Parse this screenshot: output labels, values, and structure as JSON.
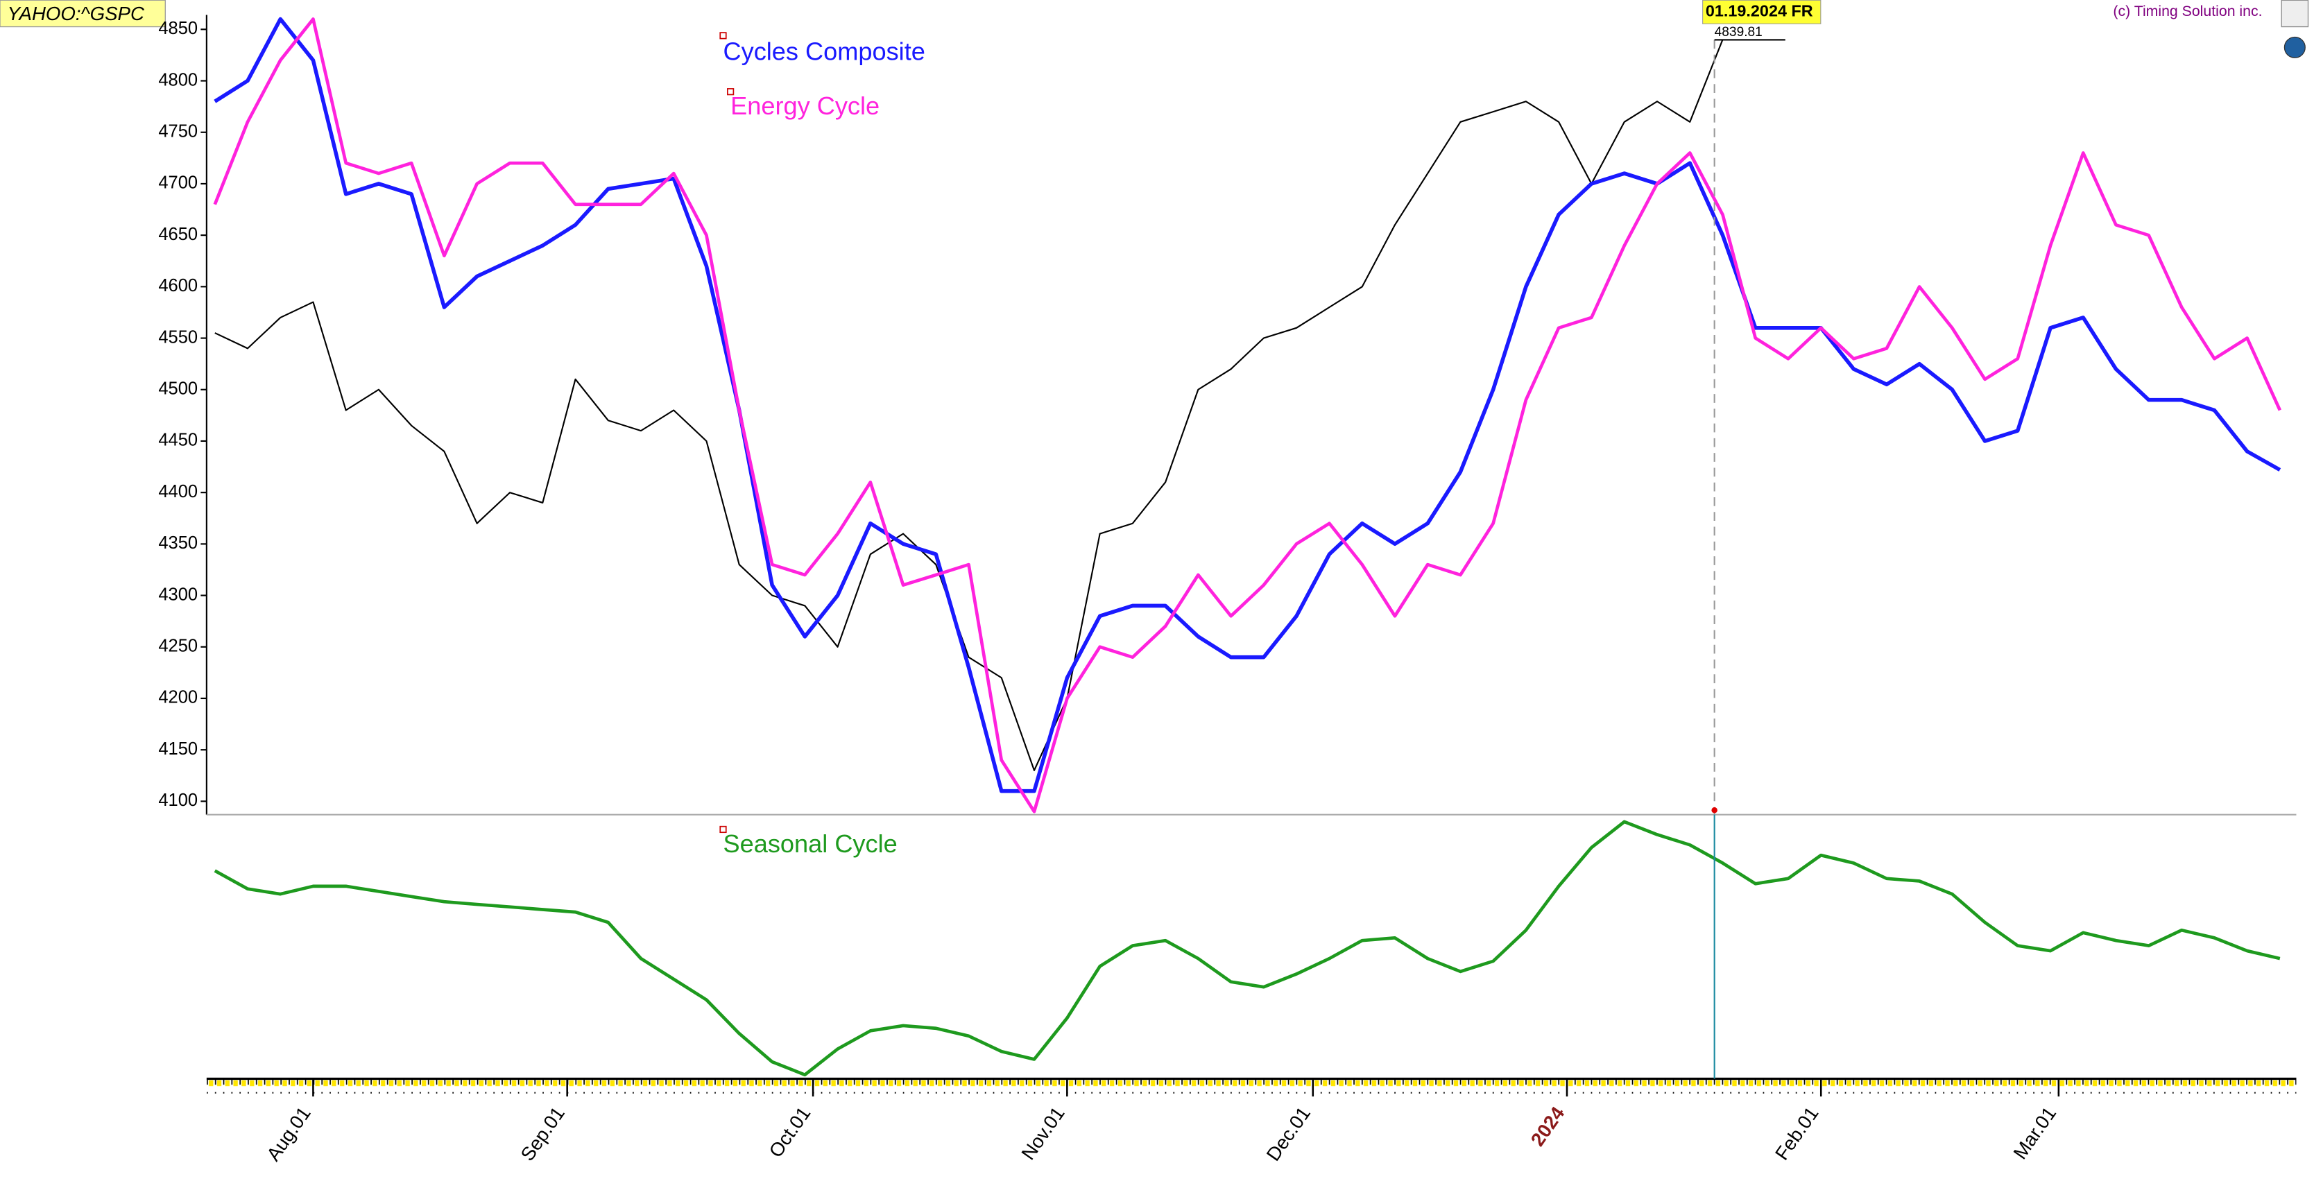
{
  "header": {
    "symbol": "YAHOO:^GSPC",
    "copyright": "(c) Timing Solution inc."
  },
  "cursor": {
    "label": "01.19.2024 FR",
    "price": 4839.81,
    "x": 171
  },
  "chart_data": [
    {
      "type": "line",
      "xlim": [
        -13,
        242
      ],
      "xticks": [
        {
          "value": 0,
          "label": "Aug.01"
        },
        {
          "value": 31,
          "label": "Sep.01"
        },
        {
          "value": 61,
          "label": "Oct.01"
        },
        {
          "value": 92,
          "label": "Nov.01"
        },
        {
          "value": 122,
          "label": "Dec.01"
        },
        {
          "value": 153,
          "label": "2024"
        },
        {
          "value": 184,
          "label": "Feb.01"
        },
        {
          "value": 213,
          "label": "Mar.01"
        }
      ],
      "ylim": [
        4087,
        4864
      ],
      "yticks": [
        4100,
        4150,
        4200,
        4250,
        4300,
        4350,
        4400,
        4450,
        4500,
        4550,
        4600,
        4650,
        4700,
        4750,
        4800,
        4850
      ],
      "x": [
        -12,
        -8,
        -4,
        0,
        4,
        8,
        12,
        16,
        20,
        24,
        28,
        32,
        36,
        40,
        44,
        48,
        52,
        56,
        60,
        64,
        68,
        72,
        76,
        80,
        84,
        88,
        92,
        96,
        100,
        104,
        108,
        112,
        116,
        120,
        124,
        128,
        132,
        136,
        140,
        144,
        148,
        152,
        156,
        160,
        164,
        168,
        172,
        176,
        180,
        184,
        188,
        192,
        196,
        200,
        204,
        208,
        212,
        216,
        220,
        224,
        228,
        232,
        236,
        240
      ],
      "series": [
        {
          "name": "YAHOO:^GSPC",
          "color": "#000000",
          "values": [
            4555,
            4540,
            4570,
            4585,
            4480,
            4500,
            4465,
            4440,
            4370,
            4400,
            4390,
            4510,
            4470,
            4460,
            4480,
            4450,
            4330,
            4300,
            4290,
            4250,
            4340,
            4360,
            4330,
            4240,
            4220,
            4130,
            4200,
            4360,
            4370,
            4410,
            4500,
            4520,
            4550,
            4560,
            4580,
            4600,
            4660,
            4710,
            4760,
            4770,
            4780,
            4760,
            4700,
            4760,
            4780,
            4760,
            4840,
            null,
            null,
            null,
            null,
            null,
            null,
            null,
            null,
            null,
            null,
            null,
            null,
            null,
            null,
            null,
            null,
            null
          ]
        },
        {
          "name": "Cycles Composite",
          "color": "#1a1aff",
          "values": [
            4780,
            4800,
            4860,
            4820,
            4690,
            4700,
            4690,
            4580,
            4610,
            4625,
            4640,
            4660,
            4695,
            4700,
            4705,
            4620,
            4480,
            4310,
            4260,
            4300,
            4370,
            4350,
            4340,
            4230,
            4110,
            4110,
            4220,
            4280,
            4290,
            4290,
            4260,
            4240,
            4240,
            4280,
            4340,
            4370,
            4350,
            4370,
            4420,
            4500,
            4600,
            4670,
            4700,
            4710,
            4700,
            4720,
            4650,
            4560,
            4560,
            4560,
            4520,
            4505,
            4525,
            4500,
            4450,
            4460,
            4560,
            4570,
            4520,
            4490,
            4490,
            4480,
            4440,
            4422
          ]
        },
        {
          "name": "Energy Cycle",
          "color": "#ff22dd",
          "values": [
            4680,
            4760,
            4820,
            4860,
            4720,
            4710,
            4720,
            4630,
            4700,
            4720,
            4720,
            4680,
            4680,
            4680,
            4710,
            4650,
            4480,
            4330,
            4320,
            4360,
            4410,
            4310,
            4320,
            4330,
            4140,
            4090,
            4200,
            4250,
            4240,
            4270,
            4320,
            4280,
            4310,
            4350,
            4370,
            4330,
            4280,
            4330,
            4320,
            4370,
            4490,
            4560,
            4570,
            4640,
            4700,
            4730,
            4670,
            4550,
            4530,
            4560,
            4530,
            4540,
            4600,
            4560,
            4510,
            4530,
            4640,
            4730,
            4660,
            4650,
            4580,
            4530,
            4550,
            4480
          ]
        }
      ]
    },
    {
      "type": "line",
      "ylim": [
        0,
        100
      ],
      "x": [
        -12,
        -8,
        -4,
        0,
        4,
        8,
        12,
        16,
        20,
        24,
        28,
        32,
        36,
        40,
        44,
        48,
        52,
        56,
        60,
        64,
        68,
        72,
        76,
        80,
        84,
        88,
        92,
        96,
        100,
        104,
        108,
        112,
        116,
        120,
        124,
        128,
        132,
        136,
        140,
        144,
        148,
        152,
        156,
        160,
        164,
        168,
        172,
        176,
        180,
        184,
        188,
        192,
        196,
        200,
        204,
        208,
        212,
        216,
        220,
        224,
        228,
        232,
        236,
        240
      ],
      "series": [
        {
          "name": "Seasonal Cycle",
          "color": "#1e9a1e",
          "values": [
            80,
            73,
            71,
            74,
            74,
            72,
            70,
            68,
            67,
            66,
            65,
            64,
            60,
            46,
            38,
            30,
            17,
            6,
            1,
            11,
            18,
            20,
            19,
            16,
            10,
            7,
            23,
            43,
            51,
            53,
            46,
            37,
            35,
            40,
            46,
            53,
            54,
            46,
            41,
            45,
            57,
            74,
            89,
            99,
            94,
            90,
            83,
            75,
            77,
            86,
            83,
            77,
            76,
            71,
            60,
            51,
            49,
            56,
            53,
            51,
            57,
            54,
            49,
            46
          ]
        }
      ]
    }
  ]
}
